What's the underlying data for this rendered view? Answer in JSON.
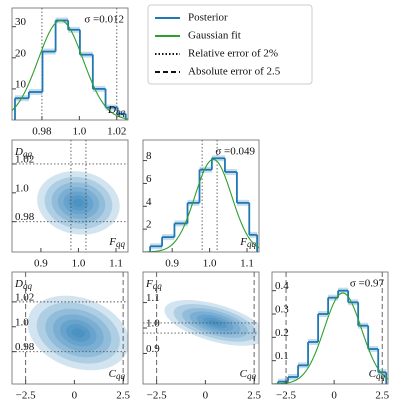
{
  "legend": {
    "entries": [
      {
        "name": "Posterior",
        "color": "#1f77b4",
        "dash": "none"
      },
      {
        "name": "Gaussian fit",
        "color": "#2ca02c",
        "dash": "none"
      },
      {
        "name": "Relative error of 2%",
        "color": "#111111",
        "dash": "1.5,2"
      },
      {
        "name": "Absolute error of 2.5",
        "color": "#111111",
        "dash": "5,3"
      }
    ]
  },
  "chart_data": [
    {
      "type": "histogram",
      "xlabel": {
        "symbol": "D",
        "subscript": "qq"
      },
      "annotation": "σ =0.012",
      "bins": [
        0.9656,
        0.973,
        0.9803,
        0.9873,
        0.994,
        1.0003,
        1.0072,
        1.014,
        1.0205,
        1.0248
      ],
      "values": [
        7,
        9,
        22,
        32,
        29,
        21,
        10,
        4,
        2
      ],
      "color": "#1f77b4",
      "fit": {
        "mean": 0.99,
        "sigma": 0.012,
        "amplitude": 32,
        "color": "#2ca02c"
      },
      "xlim": [
        0.964,
        1.026
      ],
      "xticks": [
        0.98,
        {
          "value": 1,
          "label": "1.0"
        },
        1.02
      ],
      "ylim": [
        0,
        36
      ],
      "yticks": [
        10,
        20,
        30
      ],
      "vlines": [
        {
          "value": 0.98,
          "dash": "1.5,2"
        },
        {
          "value": 1.02,
          "dash": "1.5,2"
        }
      ]
    },
    {
      "type": "density",
      "xlabel": {
        "symbol": "F",
        "subscript": "qq"
      },
      "ylabel": {
        "symbol": "D",
        "subscript": "qq"
      },
      "density": {
        "center": [
          1.0,
          0.993
        ],
        "spread": [
          0.11,
          0.022
        ],
        "rho": -0.1,
        "color": "#1f77b4"
      },
      "xlim": [
        0.823,
        1.132
      ],
      "xticks": [
        0.9,
        {
          "value": 1,
          "label": "1.0"
        },
        1.1
      ],
      "ylim": [
        0.959,
        1.0366
      ],
      "yticks": [
        1.02,
        {
          "value": 1,
          "label": "1.0"
        },
        0.98
      ],
      "vlines": [
        {
          "value": 0.98,
          "dash": "1.5,2"
        },
        {
          "value": 1.02,
          "dash": "1.5,2"
        }
      ],
      "hlines": [
        {
          "value": 0.98,
          "dash": "1.5,2"
        },
        {
          "value": 1.02,
          "dash": "1.5,2"
        }
      ]
    },
    {
      "type": "histogram",
      "xlabel": {
        "symbol": "F",
        "subscript": "qq"
      },
      "annotation": "σ =0.049",
      "bins": [
        0.841,
        0.873,
        0.906,
        0.941,
        0.973,
        1.006,
        1.041,
        1.073,
        1.106,
        1.127
      ],
      "values": [
        0.5,
        1.3,
        2.5,
        4.3,
        7.2,
        8.2,
        7.0,
        4.3,
        1.5
      ],
      "color": "#1f77b4",
      "fit": {
        "mean": 1.01,
        "sigma": 0.049,
        "amplitude": 8.1,
        "color": "#2ca02c"
      },
      "xlim": [
        0.822,
        1.132
      ],
      "xticks": [
        0.9,
        {
          "value": 1,
          "label": "1.0"
        },
        1.1
      ],
      "ylim": [
        0,
        9.8
      ],
      "yticks": [
        2,
        4,
        6,
        8
      ],
      "vlines": [
        {
          "value": 0.98,
          "dash": "1.5,2"
        },
        {
          "value": 1.02,
          "dash": "1.5,2"
        }
      ]
    },
    {
      "type": "density",
      "xlabel": {
        "symbol": "C",
        "subscript": "qq"
      },
      "ylabel": {
        "symbol": "D",
        "subscript": "qq"
      },
      "density": {
        "center": [
          0.2,
          0.995
        ],
        "spread": [
          2.6,
          0.03
        ],
        "rho": -0.25,
        "color": "#1f77b4"
      },
      "xlim": [
        -3.2,
        2.75
      ],
      "xticks": [
        {
          "value": -2.5,
          "label": "−2.5"
        },
        0,
        2.5
      ],
      "ylim": [
        0.954,
        1.044
      ],
      "yticks": [
        1.02,
        {
          "value": 1,
          "label": "1.0"
        },
        0.98
      ],
      "vlines": [
        {
          "value": -2.5,
          "dash": "5,3"
        },
        {
          "value": 2.5,
          "dash": "5,3"
        }
      ],
      "hlines": [
        {
          "value": 0.98,
          "dash": "1.5,2"
        },
        {
          "value": 1.02,
          "dash": "1.5,2"
        }
      ]
    },
    {
      "type": "density",
      "xlabel": {
        "symbol": "C",
        "subscript": "qq"
      },
      "ylabel": {
        "symbol": "F",
        "subscript": "qq"
      },
      "density": {
        "center": [
          0.5,
          1.02
        ],
        "spread": [
          2.6,
          0.09
        ],
        "rho": -0.55,
        "color": "#1f77b4"
      },
      "xlim": [
        -3.2,
        2.75
      ],
      "xticks": [
        {
          "value": -2.5,
          "label": "−2.5"
        },
        0,
        2.5
      ],
      "ylim": [
        0.78,
        1.22
      ],
      "yticks": [
        1.1,
        {
          "value": 1,
          "label": "1.0"
        },
        0.9
      ],
      "vlines": [
        {
          "value": -2.5,
          "dash": "5,3"
        },
        {
          "value": 2.5,
          "dash": "5,3"
        }
      ],
      "hlines": [
        {
          "value": 0.98,
          "dash": "1.5,2"
        },
        {
          "value": 1.02,
          "dash": "1.5,2"
        }
      ]
    },
    {
      "type": "histogram",
      "xlabel": {
        "symbol": "C",
        "subscript": "qq"
      },
      "annotation": "σ =0.97",
      "bins": [
        -2.917,
        -2.397,
        -1.876,
        -1.355,
        -0.834,
        -0.314,
        0.207,
        0.728,
        1.249,
        1.77,
        2.291,
        2.707
      ],
      "values": [
        0.01,
        0.03,
        0.08,
        0.18,
        0.3,
        0.37,
        0.4,
        0.35,
        0.25,
        0.15,
        0.05
      ],
      "color": "#1f77b4",
      "fit": {
        "mean": 0.45,
        "sigma": 0.97,
        "amplitude": 0.39,
        "color": "#2ca02c"
      },
      "xlim": [
        -3.23,
        2.8
      ],
      "xticks": [
        {
          "value": -2.5,
          "label": "−2.5"
        },
        0,
        2.5
      ],
      "ylim": [
        0,
        0.48
      ],
      "yticks": [
        0.1,
        0.2,
        0.3,
        0.4
      ],
      "vlines": [
        {
          "value": -2.5,
          "dash": "5,3"
        },
        {
          "value": 2.5,
          "dash": "5,3"
        }
      ]
    }
  ]
}
